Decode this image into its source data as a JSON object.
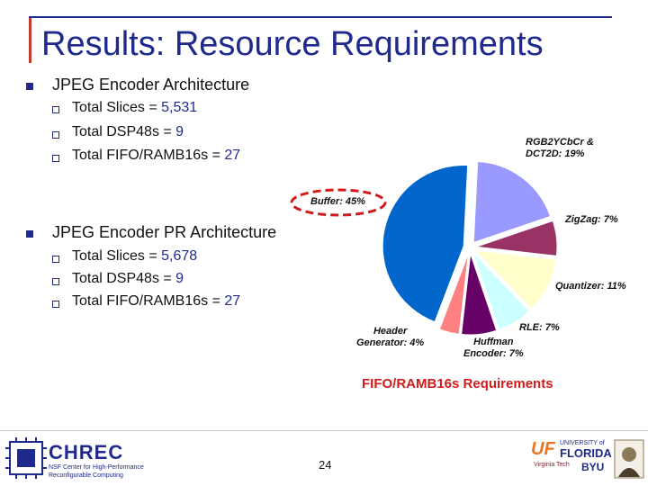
{
  "title": "Results: Resource Requirements",
  "sections": [
    {
      "heading": "JPEG Encoder Architecture",
      "items": [
        {
          "label": "Total Slices = ",
          "value": "5,531"
        },
        {
          "label": "Total DSP48s = ",
          "value": "9"
        },
        {
          "label": "Total FIFO/RAMB16s = ",
          "value": "27"
        }
      ]
    },
    {
      "heading": "JPEG Encoder PR Architecture",
      "items": [
        {
          "label": "Total Slices = ",
          "value": "5,678"
        },
        {
          "label": "Total DSP48s = ",
          "value": "9"
        },
        {
          "label": "Total FIFO/RAMB16s = ",
          "value": "27"
        }
      ]
    }
  ],
  "chart_data": {
    "type": "pie",
    "title": "FIFO/RAMB16s Requirements",
    "slices": [
      {
        "name": "RGB2YCbCr & DCT2D",
        "value": 19,
        "label": "RGB2YCbCr & DCT2D: 19%",
        "color": "#9999ff"
      },
      {
        "name": "ZigZag",
        "value": 7,
        "label": "ZigZag: 7%",
        "color": "#993366"
      },
      {
        "name": "Quantizer",
        "value": 11,
        "label": "Quantizer: 11%",
        "color": "#ffffcc"
      },
      {
        "name": "RLE",
        "value": 7,
        "label": "RLE: 7%",
        "color": "#ccffff"
      },
      {
        "name": "Huffman Encoder",
        "value": 7,
        "label": "Huffman Encoder: 7%",
        "color": "#660066"
      },
      {
        "name": "Header Generator",
        "value": 4,
        "label": "Header Generator: 4%",
        "color": "#ff8080"
      },
      {
        "name": "Buffer",
        "value": 45,
        "label": "Buffer: 45%",
        "color": "#0066cc"
      }
    ],
    "highlighted": "Buffer"
  },
  "footer": {
    "page_number": "24",
    "chrec": "CHREC",
    "chrec_sub1": "NSF Center for High-Performance",
    "chrec_sub2": "Reconfigurable Computing",
    "uf": "UF",
    "uf_univ": "UNIVERSITY of",
    "uf_florida": "FLORIDA",
    "byu": "BYU",
    "vt": "Virginia Tech"
  }
}
